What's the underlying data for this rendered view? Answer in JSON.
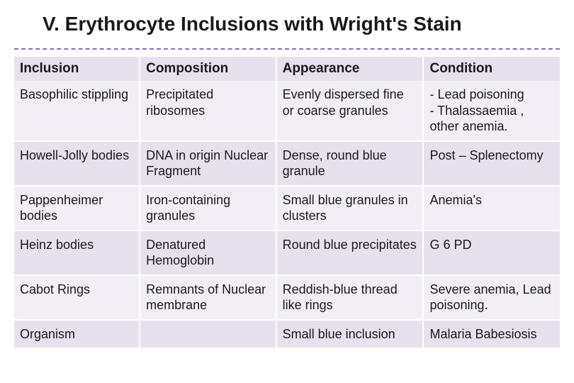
{
  "title": "V.  Erythrocyte Inclusions with Wright's Stain",
  "columns": [
    "Inclusion",
    "Composition",
    "Appearance",
    "Condition"
  ],
  "rows": [
    [
      "Basophilic stippling",
      "Precipitated ribosomes",
      "Evenly dispersed fine or coarse granules",
      "- Lead poisoning\n- Thalassaemia ,\n  other anemia."
    ],
    [
      "Howell-Jolly bodies",
      "DNA in origin Nuclear Fragment",
      "Dense, round blue granule",
      "Post – Splenectomy"
    ],
    [
      "Pappenheimer bodies",
      "Iron-containing granules",
      "Small blue granules in clusters",
      "Anemia's"
    ],
    [
      "Heinz bodies",
      "Denatured Hemoglobin",
      "Round blue precipitates",
      "G 6 PD"
    ],
    [
      "Cabot Rings",
      "Remnants of Nuclear membrane",
      "Reddish-blue thread like rings",
      "Severe anemia, Lead poisoning."
    ],
    [
      "Organism",
      "",
      "Small blue inclusion",
      "Malaria Babesiosis"
    ]
  ],
  "colors": {
    "header_bg": "#e6e1ed",
    "row_odd_bg": "#f2eef6",
    "row_even_bg": "#e6e1ed",
    "divider": "#8a6fb0",
    "text": "#1a1a1a",
    "page_num": "#b8c9d6"
  },
  "fonts": {
    "title_size": 28,
    "header_size": 19,
    "cell_size": 18
  }
}
